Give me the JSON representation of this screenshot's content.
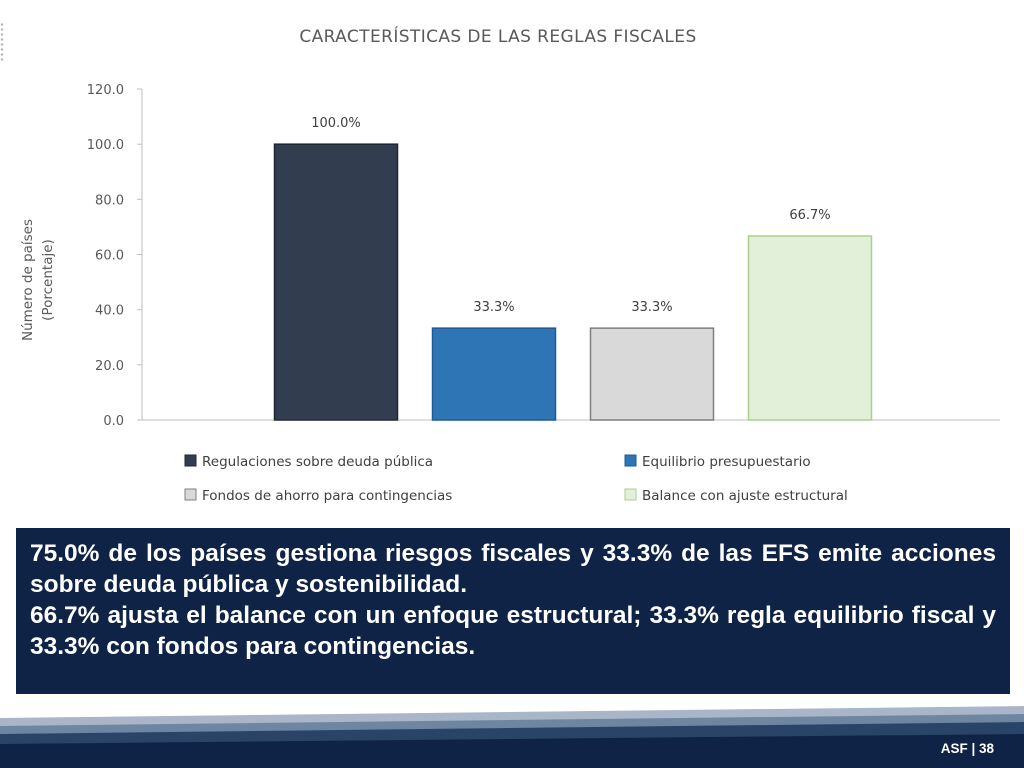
{
  "chart_data": {
    "type": "bar",
    "title": "CARACTERÍSTICAS  DE LAS  REGLAS  FISCALES",
    "ylabel_lines": [
      "Número de países",
      "(Porcentaje)"
    ],
    "ylim": [
      0,
      120
    ],
    "yticks": [
      "0.0",
      "20.0",
      "40.0",
      "60.0",
      "80.0",
      "100.0",
      "120.0"
    ],
    "series": [
      {
        "name": "Regulaciones sobre deuda pública",
        "value": 100.0,
        "label": "100.0%",
        "color": "#323d4f",
        "edge": "#1f2633"
      },
      {
        "name": "Equilibrio presupuestario",
        "value": 33.3,
        "label": "33.3%",
        "color": "#2e75b6",
        "edge": "#1f5a91"
      },
      {
        "name": "Fondos de ahorro para contingencias",
        "value": 33.3,
        "label": "33.3%",
        "color": "#d9d9d9",
        "edge": "#7f7f7f"
      },
      {
        "name": "Balance con ajuste estructural",
        "value": 66.7,
        "label": "66.7%",
        "color": "#e2efd9",
        "edge": "#a9d08e"
      }
    ],
    "legend_position": "bottom",
    "grid": false
  },
  "callout": {
    "line1": "75.0% de los países gestiona riesgos fiscales y 33.3% de las EFS emite acciones sobre deuda pública y sostenibilidad.",
    "line2": "66.7% ajusta el balance con un enfoque estructural; 33.3% regla equilibrio fiscal y 33.3% con fondos para contingencias."
  },
  "footer": {
    "label": "ASF | 38"
  }
}
